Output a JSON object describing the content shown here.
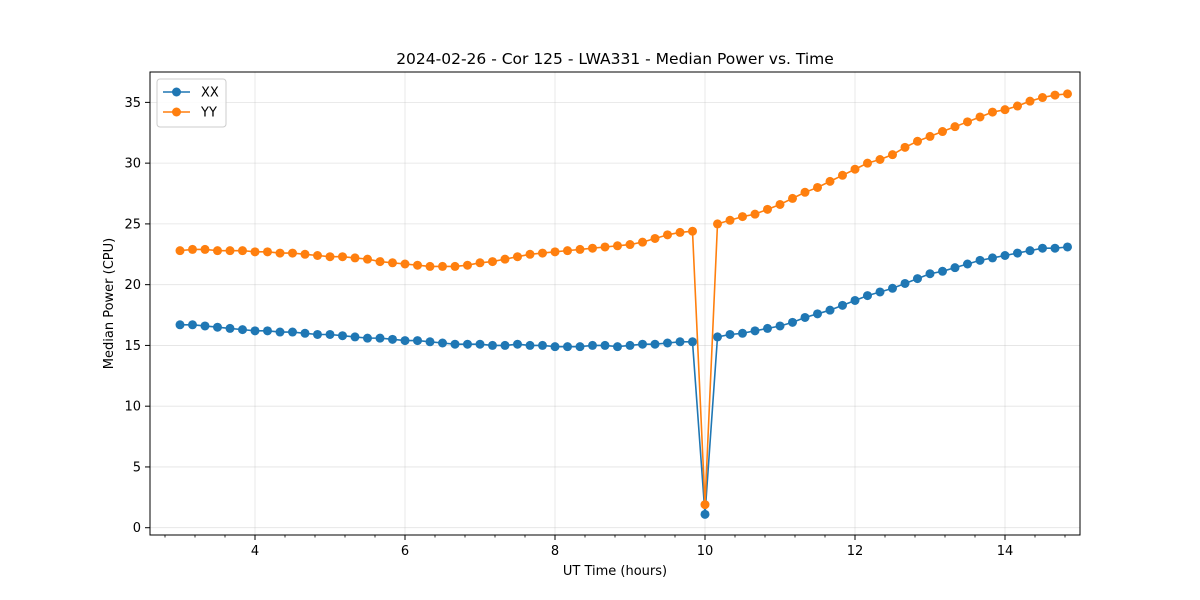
{
  "chart_data": {
    "type": "line",
    "title": "2024-02-26 - Cor 125 - LWA331 - Median Power vs. Time",
    "xlabel": "UT Time (hours)",
    "ylabel": "Median Power (CPU)",
    "xlim": [
      2.6,
      15.0
    ],
    "ylim": [
      -0.6,
      37.5
    ],
    "xticks": [
      4,
      6,
      8,
      10,
      12,
      14
    ],
    "yticks": [
      0,
      5,
      10,
      15,
      20,
      25,
      30,
      35
    ],
    "grid": true,
    "legend_position": "top-left",
    "x": [
      3.0,
      3.1667,
      3.3333,
      3.5,
      3.6667,
      3.8333,
      4.0,
      4.1667,
      4.3333,
      4.5,
      4.6667,
      4.8333,
      5.0,
      5.1667,
      5.3333,
      5.5,
      5.6667,
      5.8333,
      6.0,
      6.1667,
      6.3333,
      6.5,
      6.6667,
      6.8333,
      7.0,
      7.1667,
      7.3333,
      7.5,
      7.6667,
      7.8333,
      8.0,
      8.1667,
      8.3333,
      8.5,
      8.6667,
      8.8333,
      9.0,
      9.1667,
      9.3333,
      9.5,
      9.6667,
      9.8333,
      10.0,
      10.1667,
      10.3333,
      10.5,
      10.6667,
      10.8333,
      11.0,
      11.1667,
      11.3333,
      11.5,
      11.6667,
      11.8333,
      12.0,
      12.1667,
      12.3333,
      12.5,
      12.6667,
      12.8333,
      13.0,
      13.1667,
      13.3333,
      13.5,
      13.6667,
      13.8333,
      14.0,
      14.1667,
      14.3333,
      14.5,
      14.6667,
      14.8333
    ],
    "series": [
      {
        "name": "XX",
        "color": "#1f77b4",
        "values": [
          16.7,
          16.7,
          16.6,
          16.5,
          16.4,
          16.3,
          16.2,
          16.2,
          16.1,
          16.1,
          16.0,
          15.9,
          15.9,
          15.8,
          15.7,
          15.6,
          15.6,
          15.5,
          15.4,
          15.4,
          15.3,
          15.2,
          15.1,
          15.1,
          15.1,
          15.0,
          15.0,
          15.1,
          15.0,
          15.0,
          14.9,
          14.9,
          14.9,
          15.0,
          15.0,
          14.9,
          15.0,
          15.1,
          15.1,
          15.2,
          15.3,
          15.3,
          1.1,
          15.7,
          15.9,
          16.0,
          16.2,
          16.4,
          16.6,
          16.9,
          17.3,
          17.6,
          17.9,
          18.3,
          18.7,
          19.1,
          19.4,
          19.7,
          20.1,
          20.5,
          20.9,
          21.1,
          21.4,
          21.7,
          22.0,
          22.2,
          22.4,
          22.6,
          22.8,
          23.0,
          23.0,
          23.1
        ]
      },
      {
        "name": "YY",
        "color": "#ff7f0e",
        "values": [
          22.8,
          22.9,
          22.9,
          22.8,
          22.8,
          22.8,
          22.7,
          22.7,
          22.6,
          22.6,
          22.5,
          22.4,
          22.3,
          22.3,
          22.2,
          22.1,
          21.9,
          21.8,
          21.7,
          21.6,
          21.5,
          21.5,
          21.5,
          21.6,
          21.8,
          21.9,
          22.1,
          22.3,
          22.5,
          22.6,
          22.7,
          22.8,
          22.9,
          23.0,
          23.1,
          23.2,
          23.3,
          23.5,
          23.8,
          24.1,
          24.3,
          24.4,
          1.9,
          25.0,
          25.3,
          25.6,
          25.8,
          26.2,
          26.6,
          27.1,
          27.6,
          28.0,
          28.5,
          29.0,
          29.5,
          30.0,
          30.3,
          30.7,
          31.3,
          31.8,
          32.2,
          32.6,
          33.0,
          33.4,
          33.8,
          34.2,
          34.4,
          34.7,
          35.1,
          35.4,
          35.6,
          35.7
        ]
      }
    ]
  }
}
